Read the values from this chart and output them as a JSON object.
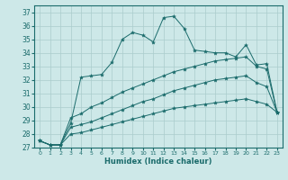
{
  "xlabel": "Humidex (Indice chaleur)",
  "ylabel": "",
  "bg_color": "#cde8e8",
  "grid_color": "#aacccc",
  "line_color": "#1a6b6b",
  "xlim": [
    -0.5,
    23.5
  ],
  "ylim": [
    27,
    37.5
  ],
  "yticks": [
    27,
    28,
    29,
    30,
    31,
    32,
    33,
    34,
    35,
    36,
    37
  ],
  "xticks": [
    0,
    1,
    2,
    3,
    4,
    5,
    6,
    7,
    8,
    9,
    10,
    11,
    12,
    13,
    14,
    15,
    16,
    17,
    18,
    19,
    20,
    21,
    22,
    23
  ],
  "series": [
    [
      27.5,
      27.2,
      27.2,
      28.8,
      32.2,
      32.3,
      32.4,
      33.3,
      35.0,
      35.5,
      35.3,
      34.8,
      36.6,
      36.7,
      35.8,
      34.2,
      34.1,
      34.0,
      34.0,
      33.7,
      34.6,
      33.1,
      33.2,
      29.6
    ],
    [
      27.5,
      27.2,
      27.2,
      29.2,
      29.5,
      30.0,
      30.3,
      30.7,
      31.1,
      31.4,
      31.7,
      32.0,
      32.3,
      32.6,
      32.8,
      33.0,
      33.2,
      33.4,
      33.5,
      33.6,
      33.7,
      33.0,
      32.8,
      29.6
    ],
    [
      27.5,
      27.2,
      27.2,
      28.5,
      28.7,
      28.9,
      29.2,
      29.5,
      29.8,
      30.1,
      30.4,
      30.6,
      30.9,
      31.2,
      31.4,
      31.6,
      31.8,
      32.0,
      32.1,
      32.2,
      32.3,
      31.8,
      31.5,
      29.6
    ],
    [
      27.5,
      27.2,
      27.2,
      28.0,
      28.1,
      28.3,
      28.5,
      28.7,
      28.9,
      29.1,
      29.3,
      29.5,
      29.7,
      29.9,
      30.0,
      30.1,
      30.2,
      30.3,
      30.4,
      30.5,
      30.6,
      30.4,
      30.2,
      29.6
    ]
  ]
}
